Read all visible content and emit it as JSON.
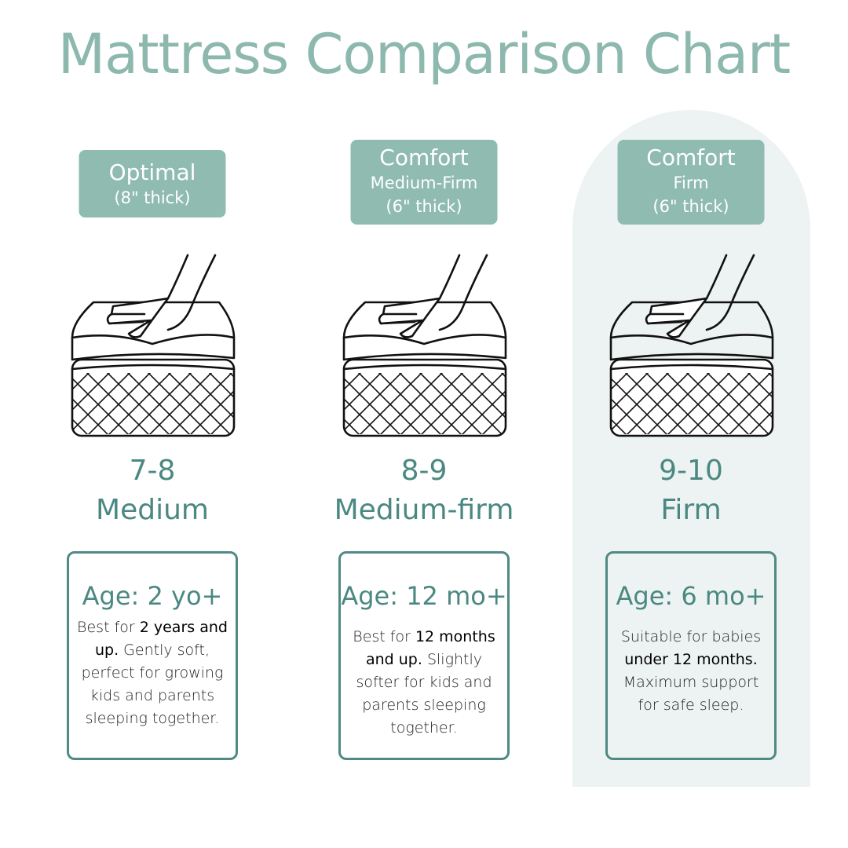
{
  "title": "Mattress Comparison Chart",
  "colors": {
    "title": "#8db8ad",
    "badge": "#8fbbb0",
    "accent_text": "#4b8882",
    "box_border": "#4f8a84",
    "highlight_bg": "#edf3f2"
  },
  "columns": [
    {
      "badge_line1": "Optimal",
      "badge_line2": "",
      "badge_line3": "(8\" thick)",
      "rating": "7-8",
      "firmness": "Medium",
      "age": "Age: 2 yo+",
      "desc_pre": "Best for ",
      "desc_bold": "2 years and up.",
      "desc_post": " Gently soft, perfect for growing kids and parents sleeping together.",
      "icon": "hand-pressing-mattress-icon"
    },
    {
      "badge_line1": "Comfort",
      "badge_line2": "Medium-Firm",
      "badge_line3": "(6\" thick)",
      "rating": "8-9",
      "firmness": "Medium-firm",
      "age": "Age: 12 mo+",
      "desc_pre": "Best for ",
      "desc_bold": "12 months and up.",
      "desc_post": " Slightly softer for kids and parents sleeping together.",
      "icon": "hand-pressing-mattress-icon"
    },
    {
      "badge_line1": "Comfort",
      "badge_line2": "Firm",
      "badge_line3": "(6\" thick)",
      "rating": "9-10",
      "firmness": "Firm",
      "age": "Age: 6 mo+",
      "desc_pre": "Suitable for babies ",
      "desc_bold": "under 12 months.",
      "desc_post": " Maximum support for safe sleep.",
      "icon": "hand-pressing-mattress-icon",
      "highlighted": true
    }
  ]
}
